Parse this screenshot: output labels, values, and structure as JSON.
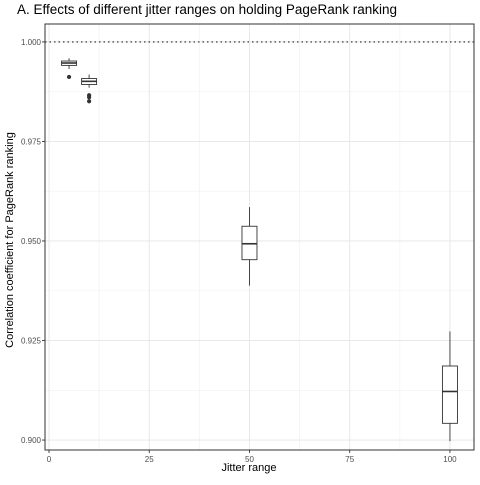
{
  "chart_data": {
    "type": "boxplot",
    "title": "A. Effects of different jitter ranges on holding PageRank ranking",
    "xlabel": "Jitter range",
    "ylabel": "Correlation coefficient for PageRank ranking",
    "xlim": [
      -1,
      106
    ],
    "ylim": [
      0.8975,
      1.0045
    ],
    "x_ticks": [
      0,
      25,
      50,
      75,
      100
    ],
    "x_tick_labels": [
      "0",
      "25",
      "50",
      "75",
      "100"
    ],
    "y_ticks": [
      0.9,
      0.925,
      0.95,
      0.975,
      1.0
    ],
    "y_tick_labels": [
      "0.900",
      "0.925",
      "0.950",
      "0.975",
      "1.000"
    ],
    "reference_line": {
      "y": 1.0,
      "style": "dotted"
    },
    "grid": true,
    "boxes": [
      {
        "x": 5,
        "whisker_low": 0.9932,
        "q1": 0.9941,
        "median": 0.9947,
        "q3": 0.9952,
        "whisker_high": 0.9959,
        "outliers": [
          0.9912
        ]
      },
      {
        "x": 10,
        "whisker_low": 0.9885,
        "q1": 0.9893,
        "median": 0.9901,
        "q3": 0.9908,
        "whisker_high": 0.9918,
        "outliers": [
          0.9866,
          0.9861,
          0.9851
        ]
      },
      {
        "x": 50,
        "whisker_low": 0.9388,
        "q1": 0.9453,
        "median": 0.9493,
        "q3": 0.9537,
        "whisker_high": 0.9585,
        "outliers": []
      },
      {
        "x": 100,
        "whisker_low": 0.8997,
        "q1": 0.9042,
        "median": 0.9122,
        "q3": 0.9186,
        "whisker_high": 0.9273,
        "outliers": []
      }
    ]
  }
}
